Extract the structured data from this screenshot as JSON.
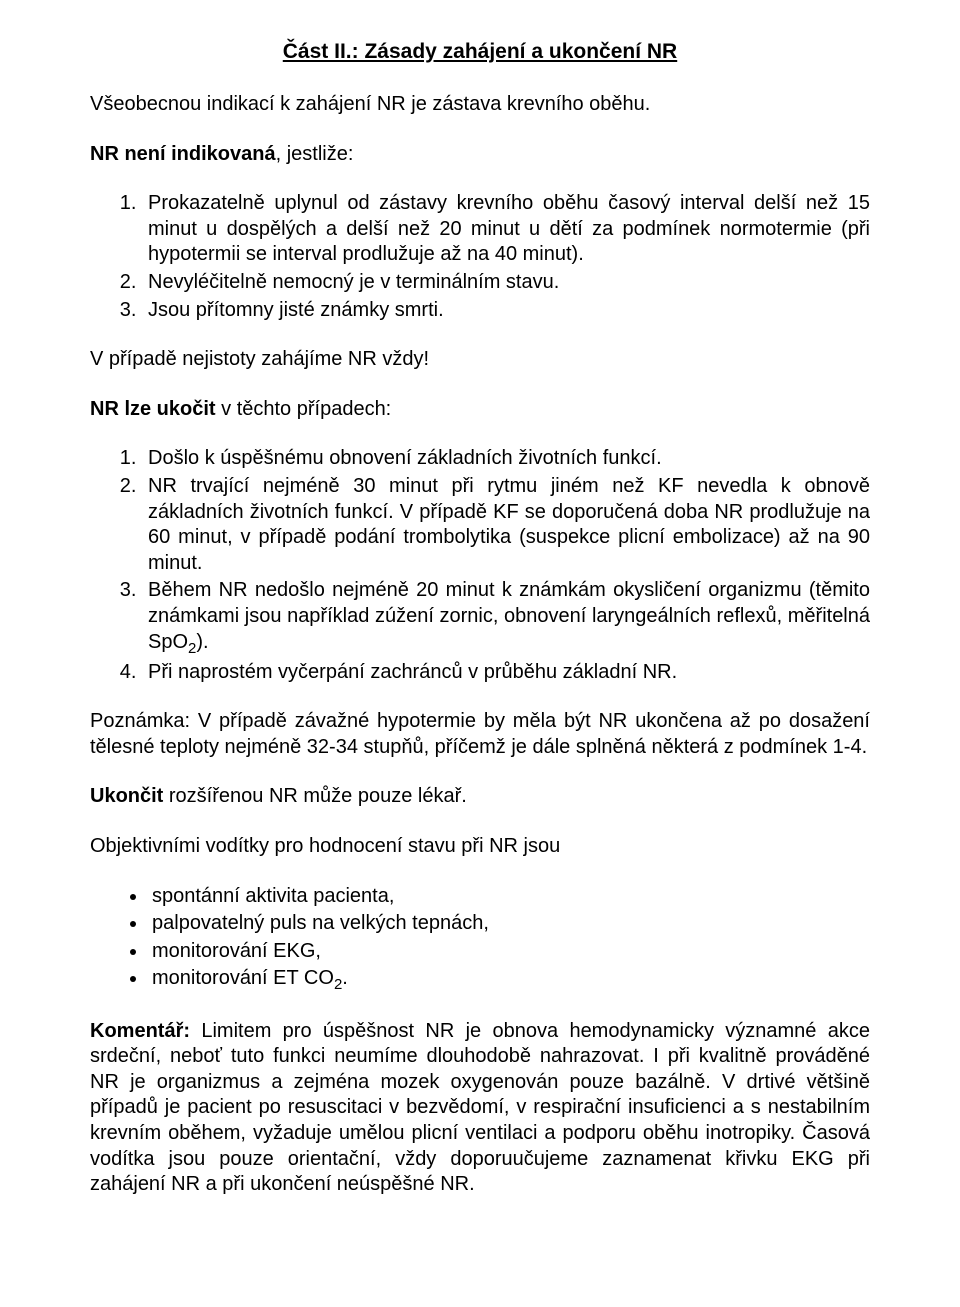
{
  "title": "Část II.: Zásady zahájení a ukončení NR",
  "intro": "Všeobecnou indikací k zahájení NR je zástava krevního oběhu.",
  "notIndicatedHeading": {
    "bold": "NR není indikovaná",
    "rest": ", jestliže:"
  },
  "notIndicatedList": [
    "Prokazatelně uplynul od zástavy krevního oběhu časový interval delší než 15 minut u dospělých a delší než 20 minut u dětí za podmínek normotermie (při hypotermii se interval prodlužuje až na 40 minut).",
    "Nevyléčitelně nemocný je v terminálním stavu.",
    "Jsou přítomny jisté známky smrti."
  ],
  "uncertainty": "V případě nejistoty zahájíme NR vždy!",
  "finishHeading": {
    "bold": "NR lze ukočit",
    "rest": " v těchto případech:"
  },
  "finishList": [
    {
      "text": "Došlo k úspěšnému obnovení základních životních funkcí."
    },
    {
      "text": "NR trvající nejméně 30 minut při rytmu jiném než KF nevedla k obnově základních životních funkcí. V případě KF se doporučená doba NR prodlužuje na 60 minut, v případě podání trombolytika (suspekce plicní embolizace) až na 90 minut."
    },
    {
      "text_html": "Během NR nedošlo nejméně 20 minut k známkám okysličení organizmu (těmito známkami jsou například zúžení zornic, obnovení laryngeálních reflexů, měřitelná SpO<sub>2</sub>)."
    },
    {
      "text": "Při naprostém vyčerpání zachránců v průběhu základní NR."
    }
  ],
  "note": "Poznámka: V případě závažné hypotermie by měla být NR ukončena až po dosažení tělesné teploty nejméně 32-34 stupňů, příčemž je dále splněná některá z podmínek 1-4.",
  "terminate": {
    "bold": "Ukončit",
    "rest": " rozšířenou NR může pouze lékař."
  },
  "objectiveHeading": "Objektivními vodítky pro hodnocení stavu při NR jsou",
  "objectiveList": [
    "spontánní aktivita pacienta,",
    "palpovatelný puls na velkých tepnách,",
    "monitorování EKG,"
  ],
  "objectiveLast_html": "monitorování ET CO<sub>2</sub>.",
  "comment": {
    "bold": "Komentář:",
    "rest": " Limitem pro úspěšnost NR je obnova hemodynamicky významné akce srdeční, neboť tuto funkci neumíme dlouhodobě nahrazovat. I při kvalitně prováděné NR je organizmus a zejména mozek oxygenován pouze bazálně. V drtivé většině případů je pacient po resuscitaci v bezvědomí, v respirační insuficienci a s nestabilním krevním oběhem, vyžaduje umělou plicní ventilaci a podporu oběhu inotropiky. Časová vodítka jsou pouze orientační, vždy doporuučujeme zaznamenat křivku EKG při zahájení NR a při ukončení neúspěšné NR."
  }
}
